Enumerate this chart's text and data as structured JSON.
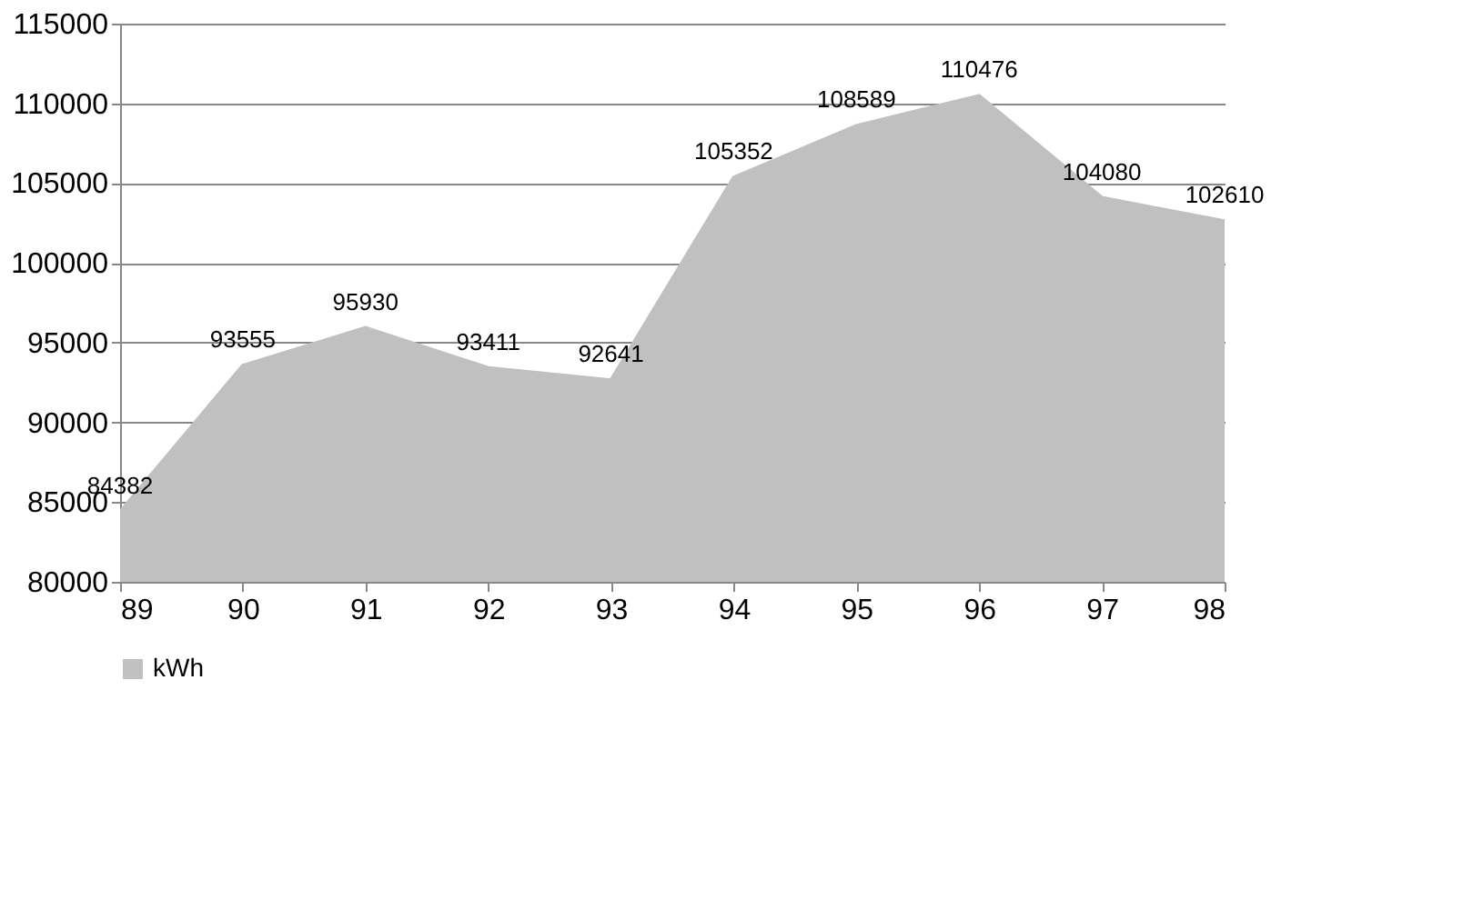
{
  "chart_data": {
    "type": "area",
    "categories": [
      "89",
      "90",
      "91",
      "92",
      "93",
      "94",
      "95",
      "96",
      "97",
      "98"
    ],
    "series": [
      {
        "name": "kWh",
        "color": "#c0c0c0",
        "values": [
          84382,
          93555,
          95930,
          93411,
          92641,
          105352,
          108589,
          110476,
          104080,
          102610
        ]
      }
    ],
    "ylim": [
      80000,
      115000
    ],
    "yticks": [
      80000,
      85000,
      90000,
      95000,
      100000,
      105000,
      110000,
      115000
    ],
    "grid": "y",
    "legend": "bottom",
    "data_labels": true
  }
}
